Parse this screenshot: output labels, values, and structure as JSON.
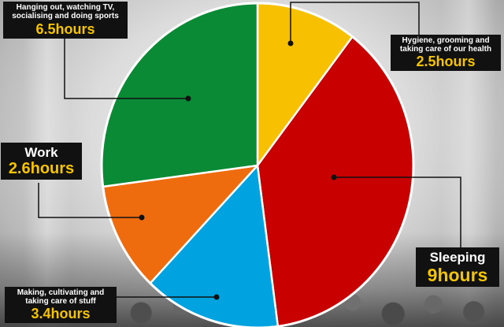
{
  "chart_data": {
    "type": "pie",
    "start_angle_deg": 0,
    "direction": "clockwise",
    "slices": [
      {
        "label": "Hygiene, grooming and taking care of our health",
        "value": 2.5,
        "display": "2.5hours",
        "color": "#f7c000"
      },
      {
        "label": "Sleeping",
        "value": 9,
        "display": "9hours",
        "color": "#c80000"
      },
      {
        "label": "Making, cultivating and taking care of stuff",
        "value": 3.4,
        "display": "3.4hours",
        "color": "#00a3df"
      },
      {
        "label": "Work",
        "value": 2.6,
        "display": "2.6hours",
        "color": "#ef6c0e"
      },
      {
        "label": "Hanging out, watching TV, socialising and doing sports",
        "value": 6.5,
        "display": "6.5hours",
        "color": "#0a8a34"
      }
    ]
  },
  "labels": {
    "leisure": {
      "desc": "Hanging out, watching TV, socialising and doing sports",
      "hours": "6.5hours"
    },
    "hygiene": {
      "desc": "Hygiene, grooming and taking care of our health",
      "hours": "2.5hours"
    },
    "work": {
      "desc": "Work",
      "hours": "2.6hours"
    },
    "sleep": {
      "desc": "Sleeping",
      "hours": "9hours"
    },
    "chores": {
      "desc": "Making, cultivating and taking care of stuff",
      "hours": "3.4hours"
    }
  }
}
